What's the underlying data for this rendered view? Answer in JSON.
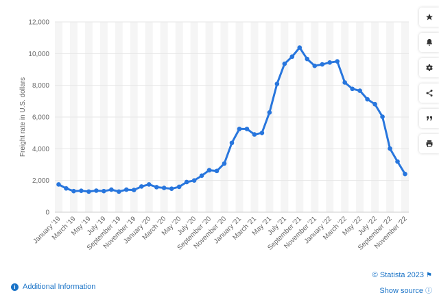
{
  "chart_data": {
    "type": "line",
    "ylabel": "Freight rate in U.S. dollars",
    "ylim": [
      0,
      12000
    ],
    "yticks": [
      0,
      2000,
      4000,
      6000,
      8000,
      10000,
      12000
    ],
    "ytick_labels": [
      "0",
      "2,000",
      "4,000",
      "6,000",
      "8,000",
      "10,000",
      "12,000"
    ],
    "x": [
      "January '19",
      "February '19",
      "March '19",
      "April '19",
      "May '19",
      "June '19",
      "July '19",
      "August '19",
      "September '19",
      "October '19",
      "November '19",
      "December '19",
      "January '20",
      "February '20",
      "March '20",
      "April '20",
      "May '20",
      "June '20",
      "July '20",
      "August '20",
      "September '20",
      "October '20",
      "November '20",
      "December '20",
      "January '21",
      "February '21",
      "March '21",
      "April '21",
      "May '21",
      "June '21",
      "July '21",
      "August '21",
      "September '21",
      "October '21",
      "November '21",
      "December '21",
      "January '22",
      "February '22",
      "March '22",
      "April '22",
      "May '22",
      "June '22",
      "July '22",
      "August '22",
      "September '22",
      "October '22",
      "November '22"
    ],
    "xtick_labels": [
      "January '19",
      "March '19",
      "May '19",
      "July '19",
      "September '19",
      "November '19",
      "January '20",
      "March '20",
      "May '20",
      "July '20",
      "September '20",
      "November '20",
      "January '21",
      "March '21",
      "May '21",
      "July '21",
      "September '21",
      "November '21",
      "January '22",
      "March '22",
      "May '22",
      "July '22",
      "September '22",
      "November '22"
    ],
    "series": [
      {
        "color": "#2876dd",
        "values": [
          1750,
          1500,
          1330,
          1350,
          1300,
          1360,
          1330,
          1420,
          1300,
          1420,
          1400,
          1620,
          1750,
          1580,
          1530,
          1480,
          1600,
          1900,
          2000,
          2300,
          2650,
          2600,
          3070,
          4370,
          5250,
          5250,
          4900,
          5000,
          6290,
          8090,
          9360,
          9810,
          10380,
          9660,
          9230,
          9320,
          9440,
          9510,
          8180,
          7780,
          7660,
          7120,
          6810,
          6020,
          4010,
          3190,
          2410
        ]
      }
    ],
    "grid": true
  },
  "toolbar": {
    "buttons": [
      {
        "icon": "star-icon"
      },
      {
        "icon": "bell-icon"
      },
      {
        "icon": "gear-icon"
      },
      {
        "icon": "share-icon"
      },
      {
        "icon": "quote-icon"
      },
      {
        "icon": "print-icon"
      }
    ]
  },
  "footer": {
    "credit": "© Statista 2023",
    "show_source": "Show source",
    "additional_info": "Additional Information"
  }
}
